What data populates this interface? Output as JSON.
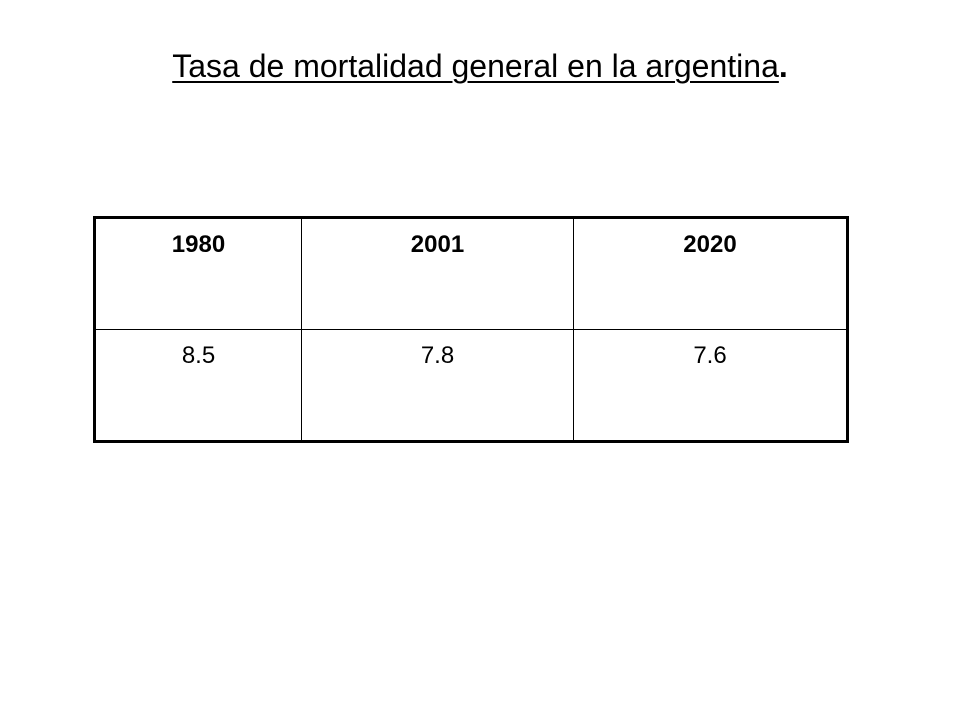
{
  "title": {
    "text": "Tasa de mortalidad  general en la argentina",
    "suffix": "."
  },
  "table": {
    "headers": [
      "1980",
      "2001",
      "2020"
    ],
    "values": [
      "8.5",
      "7.8",
      "7.6"
    ]
  }
}
